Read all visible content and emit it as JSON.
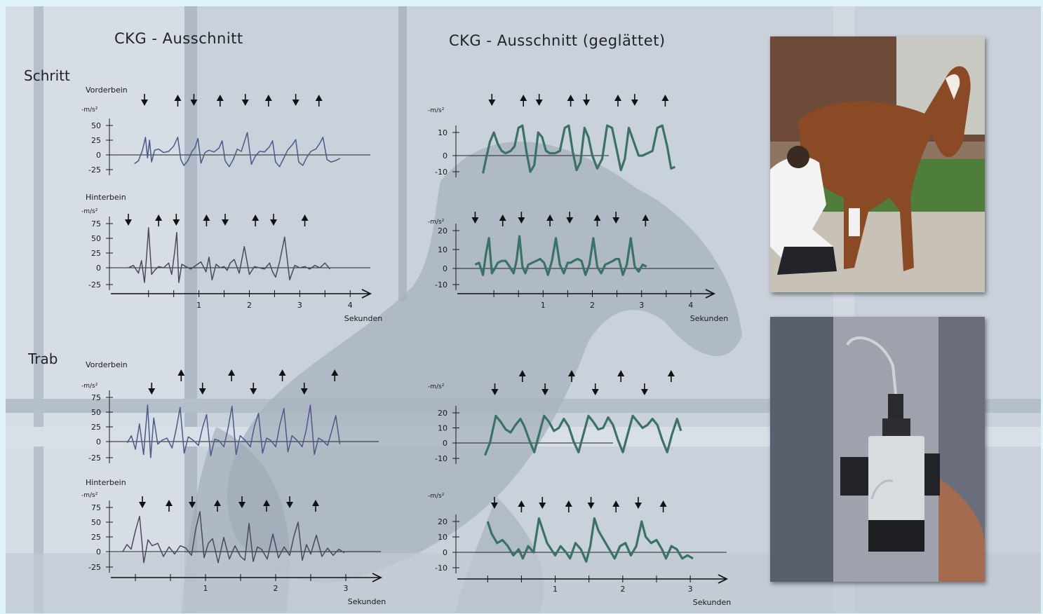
{
  "titles": {
    "left": "CKG - Ausschnitt",
    "right": "CKG - Ausschnitt (geglättet)"
  },
  "gaits": {
    "schritt": "Schritt",
    "trab": "Trab"
  },
  "colors": {
    "raw": "#4a5a8a",
    "raw_hind": "#4a4a5c",
    "smooth": "#3a7366",
    "axis": "#1a1a1a",
    "photo_grass": "#4f7d3c",
    "photo_horse": "#8a4a26"
  },
  "photos": {
    "top": "horse-with-handler-photo",
    "bottom": "sensor-on-leg-photo"
  },
  "chart_data": [
    {
      "id": "schritt-vorderbein-raw",
      "type": "line",
      "title": "",
      "label": "Vorderbein",
      "ylabel": "-m/s²",
      "yticks": [
        50,
        25,
        0,
        -25
      ],
      "ylim": [
        -30,
        55
      ],
      "xlim": [
        -0.4,
        4.4
      ],
      "xticks": [],
      "xlabel": "",
      "style": "raw",
      "up_arrows": [
        0.58,
        1.42,
        2.38,
        3.38
      ],
      "down_arrows": [
        -0.08,
        0.9,
        1.92,
        2.92
      ],
      "series": [
        {
          "x": [
            -0.28,
            -0.2,
            -0.12,
            -0.06,
            -0.02,
            0.02,
            0.06,
            0.12,
            0.2,
            0.3,
            0.4,
            0.5,
            0.58,
            0.64,
            0.7,
            0.78,
            0.86,
            0.92,
            0.98,
            1.04,
            1.12,
            1.2,
            1.3,
            1.4,
            1.46,
            1.52,
            1.6,
            1.68,
            1.76,
            1.84,
            1.9,
            1.96,
            2.04,
            2.12,
            2.2,
            2.3,
            2.4,
            2.46,
            2.52,
            2.6,
            2.68,
            2.76,
            2.86,
            2.92,
            2.98,
            3.06,
            3.14,
            3.22,
            3.32,
            3.4,
            3.46,
            3.54,
            3.62,
            3.7,
            3.8
          ],
          "y": [
            -15,
            -10,
            8,
            30,
            -5,
            25,
            -12,
            8,
            10,
            4,
            6,
            15,
            30,
            -8,
            -18,
            -10,
            6,
            12,
            28,
            -14,
            4,
            8,
            5,
            12,
            24,
            -10,
            -20,
            -8,
            10,
            6,
            22,
            38,
            -16,
            -2,
            6,
            5,
            14,
            24,
            -12,
            -20,
            -6,
            8,
            18,
            26,
            -12,
            -18,
            -4,
            6,
            10,
            20,
            30,
            -8,
            -12,
            -10,
            -6
          ]
        }
      ]
    },
    {
      "id": "schritt-hinterbein-raw",
      "type": "line",
      "title": "",
      "label": "Hinterbein",
      "ylabel": "-m/s²",
      "yticks": [
        75,
        50,
        25,
        0,
        -25
      ],
      "ylim": [
        -32,
        82
      ],
      "xlim": [
        -0.4,
        4.4
      ],
      "xticks": [
        1,
        2,
        3,
        4
      ],
      "xlabel": "Sekunden",
      "style": "raw_hind",
      "up_arrows": [
        0.2,
        1.15,
        2.12,
        3.1
      ],
      "down_arrows": [
        -0.4,
        0.55,
        1.52,
        2.48
      ],
      "series": [
        {
          "x": [
            -0.4,
            -0.3,
            -0.2,
            -0.14,
            -0.08,
            -0.04,
            0,
            0.06,
            0.12,
            0.2,
            0.3,
            0.4,
            0.46,
            0.52,
            0.56,
            0.6,
            0.66,
            0.74,
            0.84,
            0.94,
            1.04,
            1.14,
            1.2,
            1.26,
            1.34,
            1.42,
            1.5,
            1.56,
            1.62,
            1.7,
            1.8,
            1.9,
            2,
            2.1,
            2.2,
            2.3,
            2.4,
            2.46,
            2.52,
            2.6,
            2.7,
            2.8,
            2.9,
            3,
            3.1,
            3.2,
            3.3,
            3.4,
            3.5,
            3.6
          ],
          "y": [
            0,
            4,
            -8,
            12,
            -22,
            18,
            68,
            -10,
            -4,
            2,
            0,
            8,
            -10,
            28,
            60,
            -22,
            6,
            2,
            -2,
            4,
            10,
            -6,
            18,
            -18,
            6,
            0,
            2,
            -4,
            8,
            14,
            -8,
            36,
            -10,
            2,
            0,
            -2,
            8,
            -6,
            -14,
            10,
            52,
            -18,
            4,
            0,
            2,
            -2,
            4,
            0,
            8,
            -2
          ]
        }
      ]
    },
    {
      "id": "schritt-vorderbein-smooth",
      "type": "line",
      "title": "",
      "label": "",
      "ylabel": "-m/s²",
      "yticks": [
        10,
        0,
        -10
      ],
      "ylim": [
        -14,
        17
      ],
      "xlim": [
        -0.4,
        4.4
      ],
      "xticks": [],
      "xlabel": "",
      "style": "smooth",
      "up_arrows": [
        0.6,
        1.56,
        2.52,
        3.48
      ],
      "down_arrows": [
        -0.04,
        0.92,
        1.88,
        2.86
      ],
      "series": [
        {
          "x": [
            -0.22,
            -0.16,
            -0.08,
            0,
            0.08,
            0.16,
            0.24,
            0.34,
            0.42,
            0.5,
            0.58,
            0.66,
            0.74,
            0.82,
            0.9,
            0.98,
            1.06,
            1.14,
            1.24,
            1.34,
            1.44,
            1.52,
            1.6,
            1.68,
            1.76,
            1.84,
            1.92,
            2,
            2.1,
            2.2,
            2.3,
            2.4,
            2.5,
            2.58,
            2.66,
            2.74,
            2.84,
            2.94,
            3.02,
            3.12,
            3.22,
            3.32,
            3.42,
            3.52,
            3.6,
            3.68
          ],
          "y": [
            -11,
            -2,
            6,
            10,
            5,
            2,
            1,
            2,
            4,
            12,
            13,
            2,
            -10,
            -6,
            10,
            8,
            2,
            1,
            1,
            2,
            12,
            13,
            2,
            -9,
            -4,
            12,
            8,
            0,
            -8,
            -2,
            13,
            12,
            2,
            -9,
            -2,
            12,
            6,
            0,
            0,
            1,
            2,
            12,
            13,
            4,
            -8,
            -7
          ]
        }
      ]
    },
    {
      "id": "schritt-hinterbein-smooth",
      "type": "line",
      "title": "",
      "label": "",
      "ylabel": "-m/s²",
      "yticks": [
        20,
        10,
        0,
        -10
      ],
      "ylim": [
        -12,
        26
      ],
      "xlim": [
        -0.4,
        4.4
      ],
      "xticks": [
        1,
        2,
        3,
        4
      ],
      "xlabel": "Sekunden",
      "style": "smooth",
      "up_arrows": [
        0.18,
        1.14,
        2.1,
        3.08
      ],
      "down_arrows": [
        -0.38,
        0.56,
        1.54,
        2.48
      ],
      "series": [
        {
          "x": [
            -0.38,
            -0.3,
            -0.22,
            -0.16,
            -0.1,
            -0.04,
            0.02,
            0.08,
            0.16,
            0.24,
            0.32,
            0.4,
            0.46,
            0.52,
            0.58,
            0.64,
            0.7,
            0.78,
            0.86,
            0.94,
            1.02,
            1.1,
            1.18,
            1.26,
            1.34,
            1.42,
            1.5,
            1.56,
            1.62,
            1.7,
            1.78,
            1.86,
            1.94,
            2.02,
            2.1,
            2.18,
            2.26,
            2.34,
            2.42,
            2.48,
            2.54,
            2.62,
            2.7,
            2.78,
            2.86,
            2.94,
            3.02,
            3.1
          ],
          "y": [
            2,
            3,
            -4,
            8,
            16,
            -3,
            0,
            3,
            4,
            4,
            1,
            -3,
            4,
            17,
            1,
            -3,
            2,
            3,
            4,
            5,
            3,
            -4,
            4,
            16,
            2,
            -3,
            3,
            3,
            4,
            5,
            4,
            -4,
            2,
            16,
            1,
            -3,
            2,
            3,
            4,
            5,
            5,
            -4,
            2,
            16,
            1,
            -2,
            2,
            1
          ]
        }
      ]
    },
    {
      "id": "trab-vorderbein-raw",
      "type": "line",
      "title": "",
      "label": "Vorderbein",
      "ylabel": "-m/s²",
      "yticks": [
        75,
        50,
        25,
        0,
        -25
      ],
      "ylim": [
        -32,
        82
      ],
      "xlim": [
        -0.4,
        4.4
      ],
      "xticks": [],
      "xlabel": "",
      "style": "raw",
      "up_arrows": [
        0.68,
        1.67,
        2.67,
        3.7
      ],
      "down_arrows": [
        0.1,
        1.1,
        2.1,
        3.1
      ],
      "series": [
        {
          "x": [
            -0.38,
            -0.3,
            -0.22,
            -0.14,
            -0.06,
            0.02,
            0.08,
            0.14,
            0.22,
            0.3,
            0.4,
            0.5,
            0.58,
            0.66,
            0.74,
            0.82,
            0.92,
            1.02,
            1.1,
            1.18,
            1.26,
            1.34,
            1.42,
            1.52,
            1.6,
            1.68,
            1.76,
            1.84,
            1.94,
            2.04,
            2.12,
            2.2,
            2.28,
            2.36,
            2.44,
            2.54,
            2.62,
            2.7,
            2.78,
            2.86,
            2.96,
            3.06,
            3.14,
            3.22,
            3.3,
            3.38,
            3.46,
            3.56,
            3.64,
            3.72,
            3.8
          ],
          "y": [
            -2,
            10,
            -12,
            30,
            -20,
            62,
            -25,
            40,
            -4,
            2,
            6,
            -10,
            20,
            58,
            -18,
            8,
            2,
            -6,
            24,
            46,
            -22,
            4,
            2,
            -8,
            22,
            60,
            -20,
            10,
            2,
            -8,
            26,
            48,
            -18,
            6,
            2,
            -8,
            28,
            56,
            -16,
            10,
            2,
            -8,
            20,
            62,
            -20,
            6,
            2,
            -6,
            18,
            44,
            -4
          ]
        }
      ]
    },
    {
      "id": "trab-hinterbein-raw",
      "type": "line",
      "title": "",
      "label": "Hinterbein",
      "ylabel": "-m/s²",
      "yticks": [
        75,
        50,
        25,
        0,
        -25
      ],
      "ylim": [
        -32,
        82
      ],
      "xlim": [
        -0.2,
        3.3
      ],
      "xticks": [
        1,
        2,
        3
      ],
      "xlabel": "Sekunden",
      "style": "raw_hind",
      "up_arrows": [
        0.48,
        1.17,
        1.87,
        2.57
      ],
      "down_arrows": [
        0.1,
        0.81,
        1.52,
        2.2
      ],
      "series": [
        {
          "x": [
            -0.18,
            -0.12,
            -0.06,
            0,
            0.06,
            0.12,
            0.18,
            0.24,
            0.32,
            0.4,
            0.48,
            0.56,
            0.64,
            0.72,
            0.8,
            0.86,
            0.92,
            0.98,
            1.04,
            1.1,
            1.18,
            1.26,
            1.34,
            1.42,
            1.5,
            1.56,
            1.62,
            1.68,
            1.74,
            1.8,
            1.88,
            1.96,
            2.04,
            2.12,
            2.2,
            2.26,
            2.32,
            2.38,
            2.44,
            2.5,
            2.58,
            2.66,
            2.74,
            2.82,
            2.9,
            2.98
          ],
          "y": [
            0,
            12,
            4,
            35,
            60,
            -18,
            20,
            10,
            14,
            -8,
            8,
            -4,
            10,
            6,
            -6,
            38,
            68,
            -10,
            14,
            22,
            -18,
            24,
            -12,
            10,
            -8,
            -14,
            48,
            -16,
            8,
            4,
            -12,
            30,
            -10,
            8,
            -6,
            26,
            50,
            -14,
            12,
            -4,
            28,
            -8,
            6,
            -6,
            4,
            -2
          ]
        }
      ]
    },
    {
      "id": "trab-vorderbein-smooth",
      "type": "line",
      "title": "",
      "label": "",
      "ylabel": "-m/s²",
      "yticks": [
        20,
        10,
        0,
        -10
      ],
      "ylim": [
        -12,
        26
      ],
      "xlim": [
        -0.4,
        4.4
      ],
      "xticks": [],
      "xlabel": "",
      "style": "smooth",
      "up_arrows": [
        0.58,
        1.58,
        2.58,
        3.6
      ],
      "down_arrows": [
        0.02,
        1.04,
        2.06,
        3.06
      ],
      "series": [
        {
          "x": [
            -0.18,
            -0.08,
            0.04,
            0.14,
            0.24,
            0.34,
            0.44,
            0.54,
            0.62,
            0.72,
            0.82,
            0.92,
            1.02,
            1.12,
            1.22,
            1.32,
            1.42,
            1.52,
            1.62,
            1.72,
            1.82,
            1.92,
            2.02,
            2.12,
            2.22,
            2.32,
            2.42,
            2.52,
            2.62,
            2.72,
            2.82,
            2.92,
            3.02,
            3.12,
            3.22,
            3.32,
            3.42,
            3.52,
            3.62,
            3.72,
            3.8
          ],
          "y": [
            -8,
            0,
            18,
            14,
            9,
            7,
            12,
            16,
            11,
            2,
            -6,
            6,
            18,
            14,
            8,
            10,
            16,
            11,
            1,
            -6,
            6,
            18,
            14,
            9,
            10,
            17,
            12,
            2,
            -6,
            6,
            18,
            14,
            10,
            12,
            16,
            12,
            2,
            -6,
            6,
            16,
            8
          ]
        }
      ]
    },
    {
      "id": "trab-hinterbein-smooth",
      "type": "line",
      "title": "",
      "label": "",
      "ylabel": "-m/s²",
      "yticks": [
        20,
        10,
        0,
        -10
      ],
      "ylim": [
        -12,
        26
      ],
      "xlim": [
        -0.2,
        3.3
      ],
      "xticks": [
        1,
        2,
        3
      ],
      "xlabel": "Sekunden",
      "style": "smooth",
      "up_arrows": [
        0.5,
        1.2,
        1.9,
        2.6
      ],
      "down_arrows": [
        0.1,
        0.81,
        1.53,
        2.23
      ],
      "series": [
        {
          "x": [
            0.0,
            0.06,
            0.14,
            0.22,
            0.3,
            0.38,
            0.46,
            0.52,
            0.6,
            0.68,
            0.76,
            0.82,
            0.88,
            0.94,
            1.0,
            1.08,
            1.16,
            1.22,
            1.3,
            1.38,
            1.46,
            1.52,
            1.58,
            1.64,
            1.72,
            1.8,
            1.88,
            1.96,
            2.04,
            2.12,
            2.2,
            2.28,
            2.34,
            2.42,
            2.5,
            2.58,
            2.64,
            2.72,
            2.8,
            2.88,
            2.96,
            3.04
          ],
          "y": [
            20,
            12,
            6,
            8,
            4,
            -2,
            2,
            -4,
            4,
            0,
            22,
            14,
            6,
            2,
            -2,
            4,
            0,
            -4,
            6,
            2,
            -6,
            4,
            22,
            14,
            8,
            2,
            -4,
            4,
            6,
            -2,
            4,
            20,
            10,
            6,
            8,
            2,
            -4,
            4,
            2,
            -4,
            -2,
            -4
          ]
        }
      ]
    }
  ]
}
